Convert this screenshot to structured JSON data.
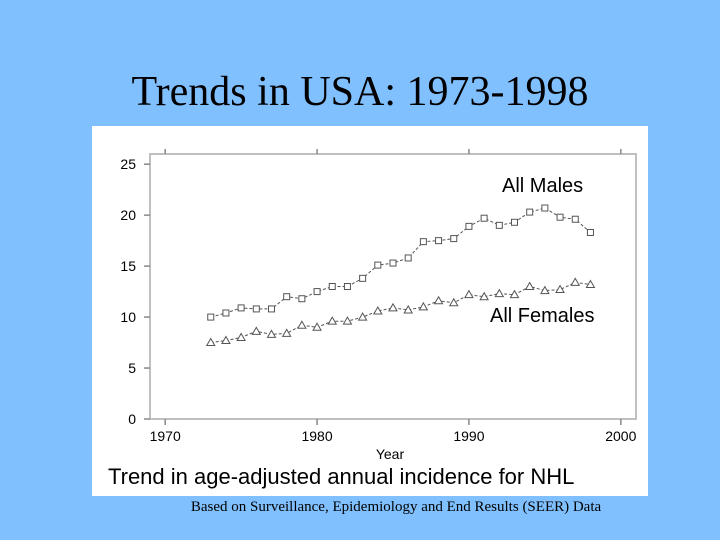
{
  "slide": {
    "title": "Trends in USA: 1973-1998",
    "source_note": "Based on Surveillance, Epidemiology and End Results (SEER) Data"
  },
  "chart_data": {
    "type": "line",
    "title": "Trend in age-adjusted annual incidence for NHL",
    "xlabel": "Year",
    "ylabel": "",
    "xlim": [
      1969,
      2001
    ],
    "ylim": [
      0,
      26
    ],
    "x_ticks": [
      1970,
      1980,
      1990,
      2000
    ],
    "y_ticks": [
      0,
      5,
      10,
      15,
      20,
      25
    ],
    "grid": false,
    "x": [
      1973,
      1974,
      1975,
      1976,
      1977,
      1978,
      1979,
      1980,
      1981,
      1982,
      1983,
      1984,
      1985,
      1986,
      1987,
      1988,
      1989,
      1990,
      1991,
      1992,
      1993,
      1994,
      1995,
      1996,
      1997,
      1998
    ],
    "series": [
      {
        "name": "All Males",
        "marker": "square",
        "color": "#555555",
        "values": [
          10.0,
          10.4,
          10.9,
          10.8,
          10.8,
          12.0,
          11.8,
          12.5,
          13.0,
          13.0,
          13.8,
          15.1,
          15.3,
          15.8,
          17.4,
          17.5,
          17.7,
          18.9,
          19.7,
          19.0,
          19.3,
          20.3,
          20.7,
          19.8,
          19.6,
          18.3
        ]
      },
      {
        "name": "All Females",
        "marker": "triangle",
        "color": "#555555",
        "values": [
          7.5,
          7.7,
          8.0,
          8.6,
          8.3,
          8.4,
          9.2,
          9.0,
          9.6,
          9.6,
          10.0,
          10.6,
          10.9,
          10.7,
          11.0,
          11.6,
          11.4,
          12.2,
          12.0,
          12.3,
          12.2,
          13.0,
          12.6,
          12.7,
          13.4,
          13.2
        ]
      }
    ],
    "annotations": [
      "All Males",
      "All Females"
    ]
  }
}
